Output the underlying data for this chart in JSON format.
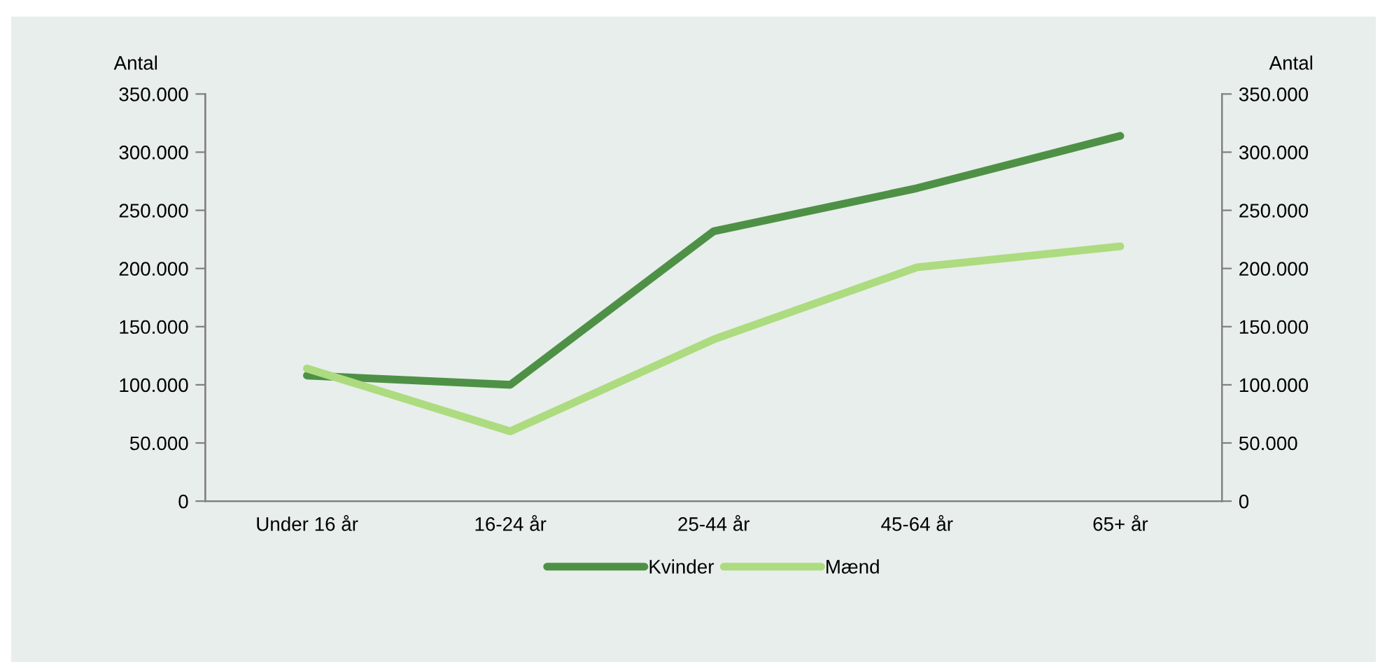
{
  "chart_data": {
    "type": "line",
    "ylabel": "Antal",
    "y2label": "Antal",
    "categories": [
      "Under 16 år",
      "16-24 år",
      "25-44 år",
      "45-64 år",
      "65+ år"
    ],
    "series": [
      {
        "name": "Kvinder",
        "color": "#4e9146",
        "values": [
          108000,
          100000,
          232000,
          269000,
          314000
        ]
      },
      {
        "name": "Mænd",
        "color": "#addb7f",
        "values": [
          114000,
          60000,
          139000,
          201000,
          219000
        ]
      }
    ],
    "ylim": [
      0,
      350000
    ],
    "yticks": [
      0,
      {
        "value": 50000,
        "label": "50.000"
      },
      {
        "value": 100000,
        "label": "100.000"
      },
      {
        "value": 150000,
        "label": "150.000"
      },
      {
        "value": 200000,
        "label": "200.000"
      },
      {
        "value": 250000,
        "label": "250.000"
      },
      {
        "value": 300000,
        "label": "300.000"
      },
      {
        "value": 350000,
        "label": "350.000"
      }
    ],
    "y2lim": [
      0,
      350000
    ],
    "y2ticks": [
      0,
      {
        "value": 50000,
        "label": "50.000"
      },
      {
        "value": 100000,
        "label": "100.000"
      },
      {
        "value": 150000,
        "label": "150.000"
      },
      {
        "value": 200000,
        "label": "200.000"
      },
      {
        "value": 250000,
        "label": "250.000"
      },
      {
        "value": 300000,
        "label": "300.000"
      },
      {
        "value": 350000,
        "label": "350.000"
      }
    ],
    "grid": false,
    "legend": "bottom",
    "marker": "none",
    "line_style": "solid"
  }
}
